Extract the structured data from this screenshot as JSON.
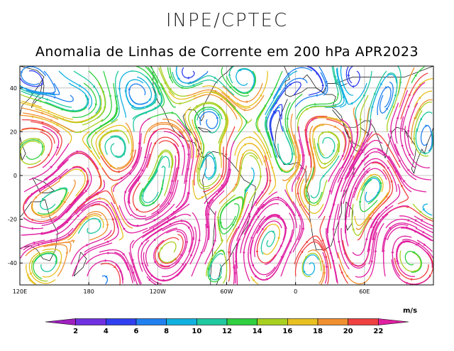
{
  "header": {
    "institution": "INPE/CPTEC",
    "title": "Anomalia de Linhas de Corrente em 200 hPa APR2023"
  },
  "map": {
    "lon_range": [
      120,
      480
    ],
    "lat_range": [
      -50,
      50
    ],
    "lat_ticks": [
      {
        "value": 40,
        "label": "40"
      },
      {
        "value": 20,
        "label": "20"
      },
      {
        "value": 0,
        "label": "0"
      },
      {
        "value": -20,
        "label": "-20"
      },
      {
        "value": -40,
        "label": "-40"
      }
    ],
    "lon_ticks": [
      {
        "value": 120,
        "label": "120E"
      },
      {
        "value": 180,
        "label": "180"
      },
      {
        "value": 240,
        "label": "120W"
      },
      {
        "value": 300,
        "label": "60W"
      },
      {
        "value": 360,
        "label": "0"
      },
      {
        "value": 420,
        "label": "60E"
      }
    ],
    "grid": true
  },
  "colorbar": {
    "units": "m/s",
    "labels": [
      "2",
      "4",
      "6",
      "8",
      "10",
      "12",
      "14",
      "16",
      "18",
      "20",
      "22"
    ],
    "colors": [
      "#a020c0",
      "#7030e0",
      "#3040f0",
      "#2080f0",
      "#10b0e0",
      "#20c8a0",
      "#30d040",
      "#a8d020",
      "#e8c020",
      "#f09030",
      "#f04040",
      "#e020a0"
    ]
  }
}
